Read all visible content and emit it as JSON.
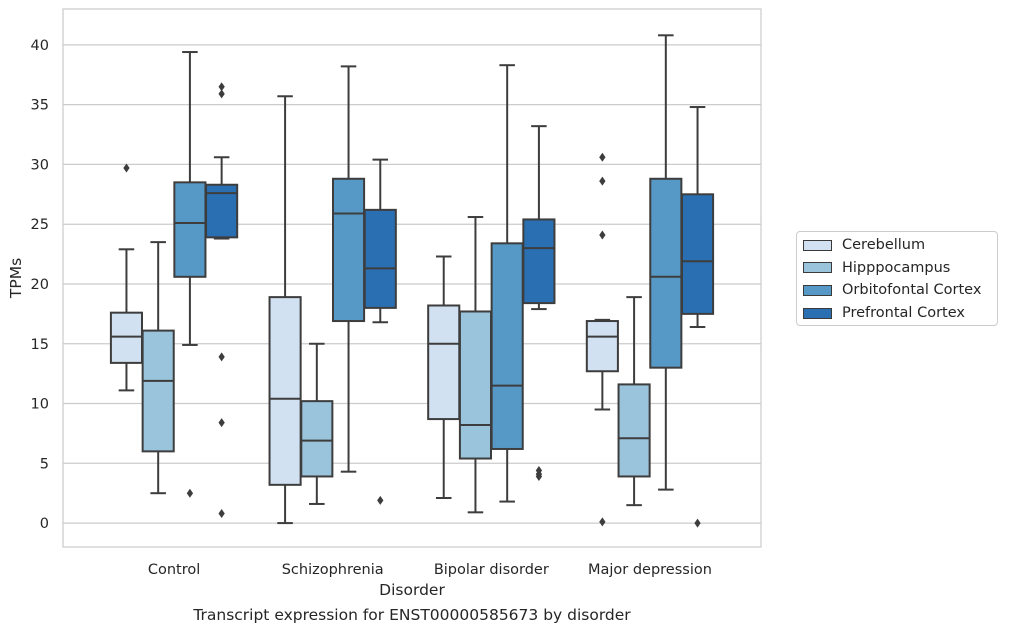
{
  "chart_data": {
    "type": "box",
    "xlabel": "Disorder",
    "ylabel": "TPMs",
    "caption": "Transcript expression for ENST00000585673 by disorder",
    "ylim": [
      -2,
      43
    ],
    "yticks": [
      0,
      5,
      10,
      15,
      20,
      25,
      30,
      35,
      40
    ],
    "grid": "horizontal",
    "legend_placement": "right-outside",
    "categories": [
      "Control",
      "Schizophrenia",
      "Bipolar disorder",
      "Major depression"
    ],
    "series": [
      {
        "name": "Cerebellum",
        "color": "#d1e1f1",
        "boxes": [
          {
            "whislo": 11.1,
            "q1": 13.4,
            "med": 15.6,
            "q3": 17.6,
            "whishi": 22.9,
            "fliers": [
              29.7
            ]
          },
          {
            "whislo": 0.0,
            "q1": 3.2,
            "med": 10.4,
            "q3": 18.9,
            "whishi": 35.7,
            "fliers": []
          },
          {
            "whislo": 2.1,
            "q1": 8.7,
            "med": 15.0,
            "q3": 18.2,
            "whishi": 22.3,
            "fliers": []
          },
          {
            "whislo": 9.5,
            "q1": 12.7,
            "med": 15.6,
            "q3": 16.9,
            "whishi": 17.0,
            "fliers": [
              24.1,
              28.6,
              30.6,
              0.1
            ]
          }
        ]
      },
      {
        "name": "Hipppocampus",
        "color": "#9ac3dc",
        "boxes": [
          {
            "whislo": 2.5,
            "q1": 6.0,
            "med": 11.9,
            "q3": 16.1,
            "whishi": 23.5,
            "fliers": []
          },
          {
            "whislo": 1.6,
            "q1": 3.9,
            "med": 6.9,
            "q3": 10.2,
            "whishi": 15.0,
            "fliers": []
          },
          {
            "whislo": 0.9,
            "q1": 5.4,
            "med": 8.2,
            "q3": 17.7,
            "whishi": 25.6,
            "fliers": []
          },
          {
            "whislo": 1.5,
            "q1": 3.9,
            "med": 7.1,
            "q3": 11.6,
            "whishi": 18.9,
            "fliers": []
          }
        ]
      },
      {
        "name": "Orbitofontal Cortex",
        "color": "#5799c6",
        "boxes": [
          {
            "whislo": 14.9,
            "q1": 20.6,
            "med": 25.1,
            "q3": 28.5,
            "whishi": 39.4,
            "fliers": [
              2.5
            ]
          },
          {
            "whislo": 4.3,
            "q1": 16.9,
            "med": 25.9,
            "q3": 28.8,
            "whishi": 38.2,
            "fliers": []
          },
          {
            "whislo": 1.8,
            "q1": 6.2,
            "med": 11.5,
            "q3": 23.4,
            "whishi": 38.3,
            "fliers": []
          },
          {
            "whislo": 2.8,
            "q1": 13.0,
            "med": 20.6,
            "q3": 28.8,
            "whishi": 40.8,
            "fliers": []
          }
        ]
      },
      {
        "name": "Prefrontal Cortex",
        "color": "#2a6fb2",
        "boxes": [
          {
            "whislo": 23.8,
            "q1": 23.9,
            "med": 27.6,
            "q3": 28.3,
            "whishi": 30.6,
            "fliers": [
              36.5,
              35.9,
              13.9,
              8.4,
              0.8
            ]
          },
          {
            "whislo": 16.8,
            "q1": 18.0,
            "med": 21.3,
            "q3": 26.2,
            "whishi": 30.4,
            "fliers": [
              1.9
            ]
          },
          {
            "whislo": 17.9,
            "q1": 18.4,
            "med": 23.0,
            "q3": 25.4,
            "whishi": 33.2,
            "fliers": [
              4.4,
              4.1,
              3.9
            ]
          },
          {
            "whislo": 16.4,
            "q1": 17.5,
            "med": 21.9,
            "q3": 27.5,
            "whishi": 34.8,
            "fliers": [
              0.0
            ]
          }
        ]
      }
    ]
  }
}
